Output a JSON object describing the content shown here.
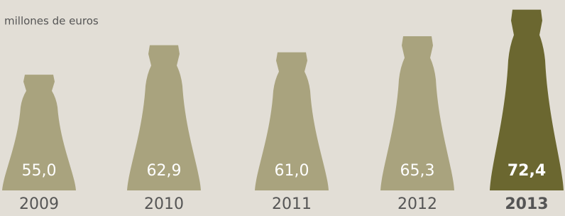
{
  "chart_data": {
    "type": "bottle",
    "subtitle": "millones de euros",
    "categories": [
      "2009",
      "2010",
      "2011",
      "2012",
      "2013"
    ],
    "values": [
      55.0,
      62.9,
      61.0,
      65.3,
      72.4
    ],
    "value_labels": [
      "55,0",
      "62,9",
      "61,0",
      "65,3",
      "72,4"
    ],
    "colors": [
      "#a9a37e",
      "#a9a37e",
      "#a9a37e",
      "#a9a37e",
      "#6b6730"
    ],
    "bold": [
      false,
      false,
      false,
      false,
      true
    ],
    "ylim": [
      24,
      75
    ]
  }
}
